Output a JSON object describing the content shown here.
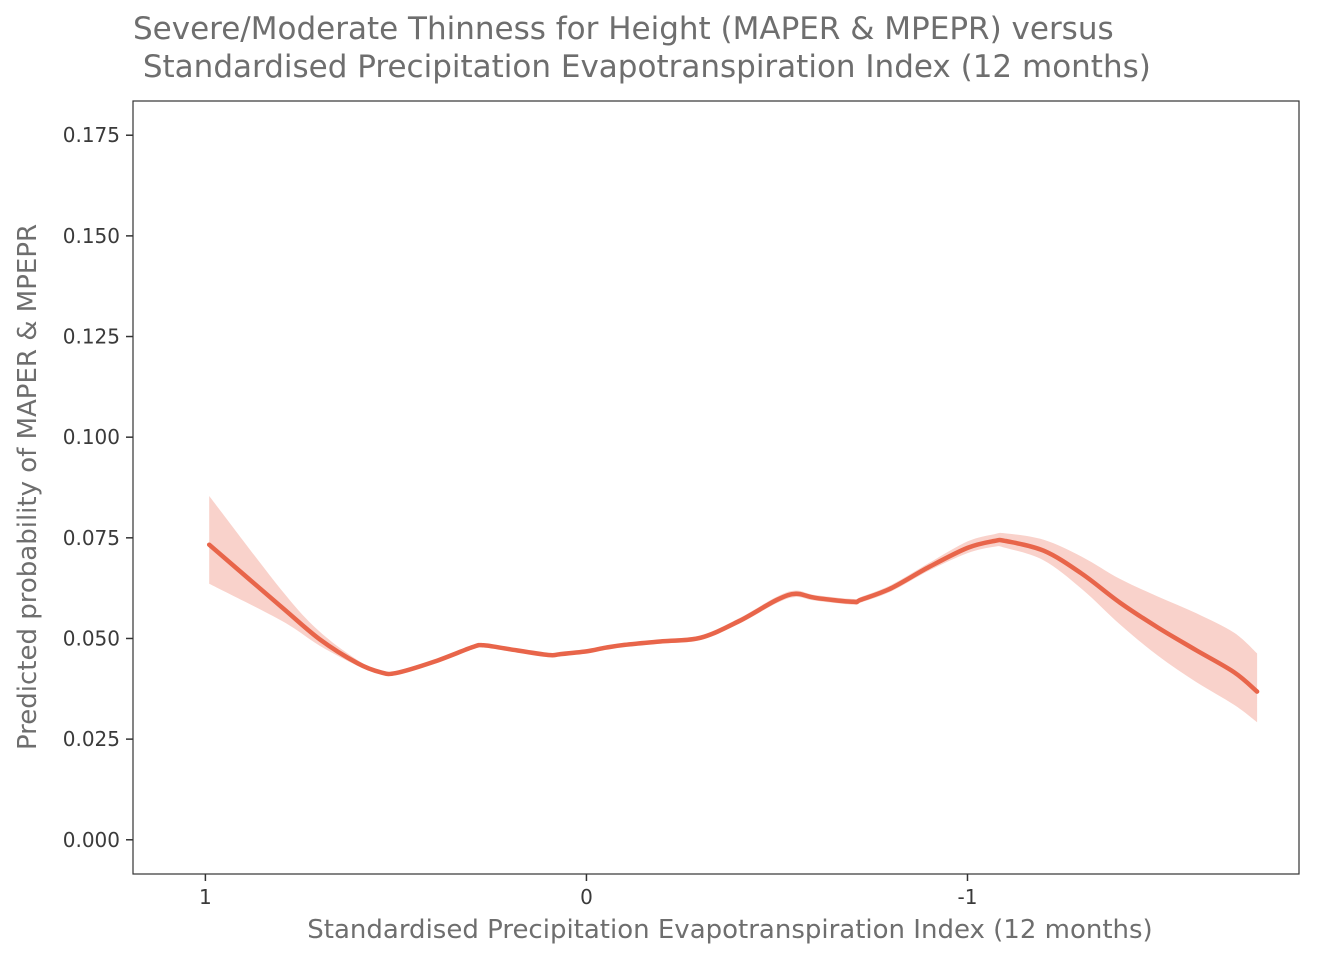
{
  "chart_data": {
    "type": "line",
    "title": "Severe/Moderate Thinness for Height (MAPER & MPEPR) versus",
    "subtitle": " Standardised Precipitation Evapotranspiration Index (12 months)",
    "xlabel": "Standardised Precipitation Evapotranspiration Index (12 months)",
    "ylabel": "Predicted probability of MAPER & MPEPR",
    "x_reversed": true,
    "xlim": [
      1.19,
      -1.87
    ],
    "ylim": [
      -0.0085,
      0.1835
    ],
    "x_ticks": [
      1,
      0,
      -1
    ],
    "x_tick_labels": [
      "1",
      "0",
      "-1"
    ],
    "y_ticks": [
      0,
      0.025,
      0.05,
      0.075,
      0.1,
      0.125,
      0.15,
      0.175
    ],
    "y_tick_labels": [
      "0.000",
      "0.025",
      "0.050",
      "0.075",
      "0.100",
      "0.125",
      "0.150",
      "0.175"
    ],
    "grid": false,
    "colors": {
      "line": "#e8654a",
      "ribbon": "#f9d2cb",
      "axis": "#333333"
    },
    "series": [
      {
        "x": [
          0.99,
          0.8,
          0.7,
          0.6,
          0.54,
          0.5,
          0.4,
          0.3,
          0.27,
          0.2,
          0.1,
          0.07,
          0.0,
          -0.05,
          -0.1,
          -0.2,
          -0.3,
          -0.4,
          -0.5,
          -0.55,
          -0.6,
          -0.7,
          -0.72,
          -0.8,
          -0.9,
          -1.0,
          -1.07,
          -1.1,
          -1.2,
          -1.3,
          -1.4,
          -1.5,
          -1.6,
          -1.7,
          -1.76
        ],
        "y": [
          0.0733,
          0.0578,
          0.0498,
          0.0438,
          0.0416,
          0.0414,
          0.0442,
          0.0478,
          0.0483,
          0.0473,
          0.0459,
          0.0461,
          0.0468,
          0.0477,
          0.0484,
          0.0493,
          0.0502,
          0.0543,
          0.0596,
          0.0611,
          0.0601,
          0.0591,
          0.0596,
          0.0625,
          0.0678,
          0.0725,
          0.0742,
          0.0742,
          0.0718,
          0.0661,
          0.0589,
          0.0527,
          0.0471,
          0.0416,
          0.0368
        ],
        "lower": [
          0.0636,
          0.0544,
          0.0482,
          0.0432,
          0.0411,
          0.0409,
          0.0437,
          0.0474,
          0.0479,
          0.047,
          0.0455,
          0.0457,
          0.0464,
          0.0473,
          0.048,
          0.0488,
          0.0496,
          0.0536,
          0.0588,
          0.0603,
          0.0594,
          0.0584,
          0.0589,
          0.0617,
          0.0669,
          0.0712,
          0.0728,
          0.0725,
          0.0694,
          0.0623,
          0.0535,
          0.0457,
          0.0392,
          0.0335,
          0.0292
        ],
        "upper": [
          0.0854,
          0.062,
          0.0517,
          0.0446,
          0.0421,
          0.0419,
          0.0447,
          0.0483,
          0.0488,
          0.0477,
          0.0463,
          0.0465,
          0.0472,
          0.0481,
          0.0488,
          0.0498,
          0.0508,
          0.055,
          0.0604,
          0.0619,
          0.0608,
          0.0598,
          0.0603,
          0.0633,
          0.0688,
          0.0741,
          0.0759,
          0.0761,
          0.0745,
          0.0703,
          0.0648,
          0.0604,
          0.0563,
          0.0514,
          0.0463
        ]
      }
    ]
  }
}
